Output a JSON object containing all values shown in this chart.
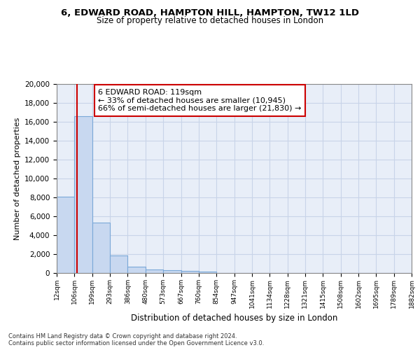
{
  "title_line1": "6, EDWARD ROAD, HAMPTON HILL, HAMPTON, TW12 1LD",
  "title_line2": "Size of property relative to detached houses in London",
  "xlabel": "Distribution of detached houses by size in London",
  "ylabel": "Number of detached properties",
  "bar_color": "#c8d8f0",
  "bar_edge_color": "#7aa8d8",
  "grid_color": "#c8d4e8",
  "property_line_color": "#cc0000",
  "annotation_box_color": "#cc0000",
  "annotation_text": "6 EDWARD ROAD: 119sqm\n← 33% of detached houses are smaller (10,945)\n66% of semi-detached houses are larger (21,830) →",
  "property_size": 119,
  "footer_line1": "Contains HM Land Registry data © Crown copyright and database right 2024.",
  "footer_line2": "Contains public sector information licensed under the Open Government Licence v3.0.",
  "bin_edges": [
    12,
    106,
    199,
    293,
    386,
    480,
    573,
    667,
    760,
    854,
    947,
    1041,
    1134,
    1228,
    1321,
    1415,
    1508,
    1602,
    1695,
    1789,
    1882
  ],
  "bar_heights": [
    8100,
    16600,
    5300,
    1850,
    650,
    350,
    270,
    220,
    180,
    0,
    0,
    0,
    0,
    0,
    0,
    0,
    0,
    0,
    0,
    0
  ],
  "ylim": [
    0,
    20000
  ],
  "yticks": [
    0,
    2000,
    4000,
    6000,
    8000,
    10000,
    12000,
    14000,
    16000,
    18000,
    20000
  ],
  "bin_labels": [
    "12sqm",
    "106sqm",
    "199sqm",
    "293sqm",
    "386sqm",
    "480sqm",
    "573sqm",
    "667sqm",
    "760sqm",
    "854sqm",
    "947sqm",
    "1041sqm",
    "1134sqm",
    "1228sqm",
    "1321sqm",
    "1415sqm",
    "1508sqm",
    "1602sqm",
    "1695sqm",
    "1789sqm",
    "1882sqm"
  ],
  "background_color": "#e8eef8"
}
